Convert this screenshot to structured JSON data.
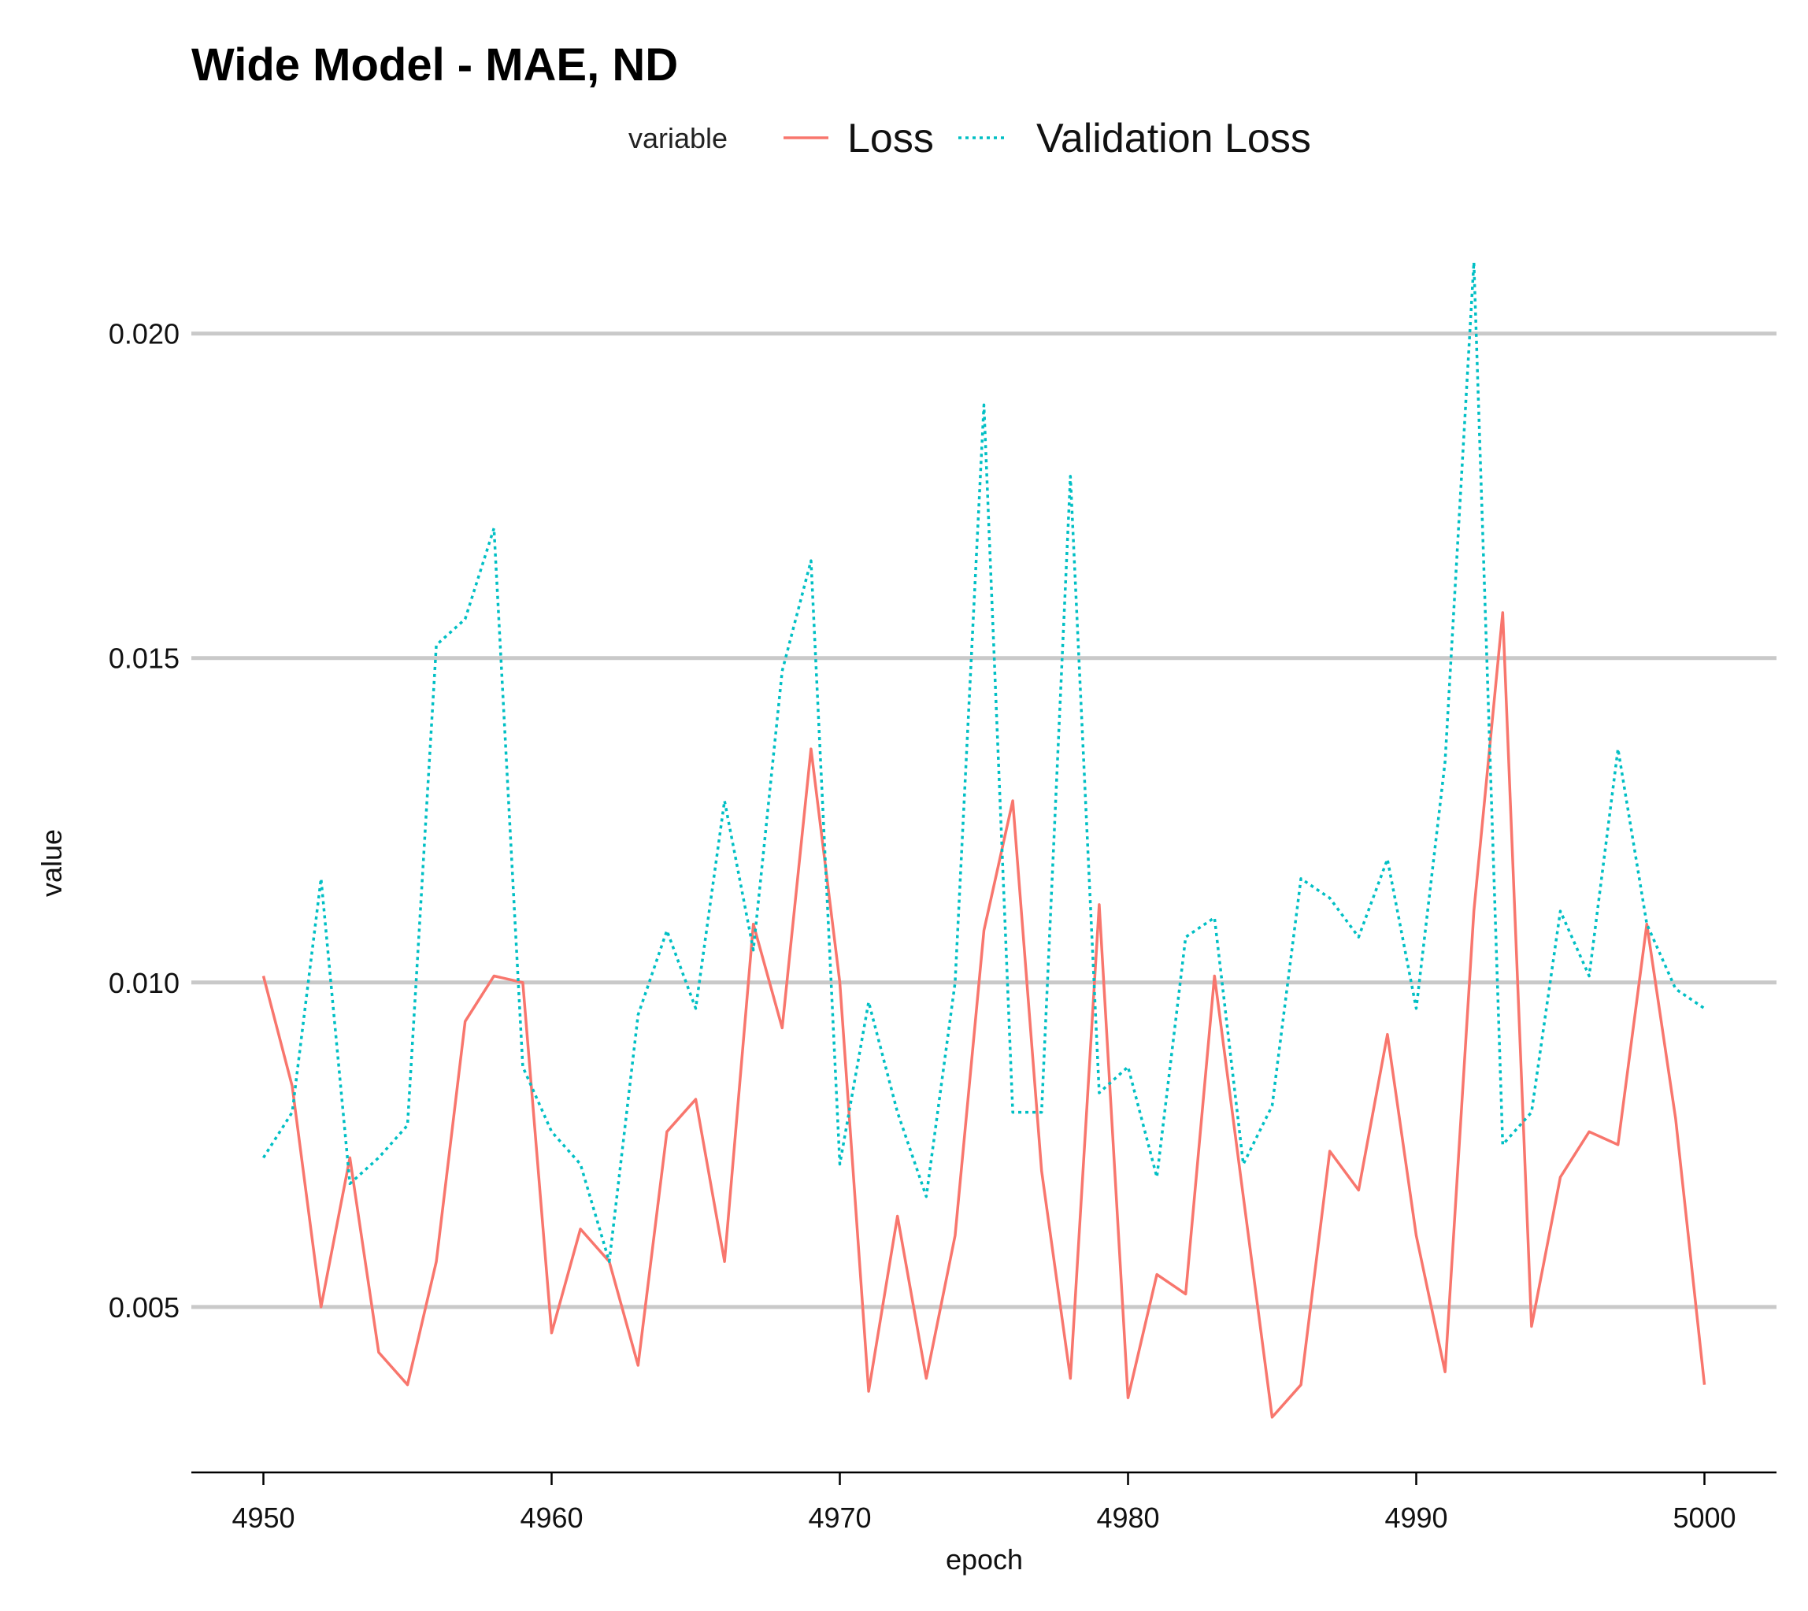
{
  "chart_data": {
    "type": "line",
    "title": "Wide Model - MAE, ND",
    "xlabel": "epoch",
    "ylabel": "value",
    "legend_title": "variable",
    "legend_position": "top",
    "grid": "horizontal-major",
    "xlim": [
      4947.5,
      5002.5
    ],
    "ylim": [
      0.00245,
      0.0215
    ],
    "x_ticks": [
      4950,
      4960,
      4970,
      4980,
      4990,
      5000
    ],
    "x_tick_labels": [
      "4950",
      "4960",
      "4970",
      "4980",
      "4990",
      "5000"
    ],
    "y_ticks": [
      0.005,
      0.01,
      0.015,
      0.02
    ],
    "y_tick_labels": [
      "0.005",
      "0.010",
      "0.015",
      "0.020"
    ],
    "x": [
      4950,
      4951,
      4952,
      4953,
      4954,
      4955,
      4956,
      4957,
      4958,
      4959,
      4960,
      4961,
      4962,
      4963,
      4964,
      4965,
      4966,
      4967,
      4968,
      4969,
      4970,
      4971,
      4972,
      4973,
      4974,
      4975,
      4976,
      4977,
      4978,
      4979,
      4980,
      4981,
      4982,
      4983,
      4984,
      4985,
      4986,
      4987,
      4988,
      4989,
      4990,
      4991,
      4992,
      4993,
      4994,
      4995,
      4996,
      4997,
      4998,
      4999,
      5000
    ],
    "series": [
      {
        "name": "Loss",
        "color": "#F8766D",
        "linetype": "solid",
        "values": [
          0.0101,
          0.0084,
          0.005,
          0.0073,
          0.0043,
          0.0038,
          0.0057,
          0.0094,
          0.0101,
          0.01,
          0.0046,
          0.0062,
          0.0057,
          0.0041,
          0.0077,
          0.0082,
          0.0057,
          0.0109,
          0.0093,
          0.0136,
          0.01,
          0.0037,
          0.0064,
          0.0039,
          0.0061,
          0.0108,
          0.0128,
          0.0071,
          0.0039,
          0.0112,
          0.0036,
          0.0055,
          0.0052,
          0.0101,
          0.0067,
          0.0033,
          0.0038,
          0.0074,
          0.0068,
          0.0092,
          0.0061,
          0.004,
          0.0111,
          0.0157,
          0.0047,
          0.007,
          0.0077,
          0.0075,
          0.0109,
          0.0079,
          0.0038
        ]
      },
      {
        "name": "Validation Loss",
        "color": "#00BFC4",
        "linetype": "dotted",
        "values": [
          0.0073,
          0.008,
          0.0116,
          0.0069,
          0.0073,
          0.0078,
          0.0152,
          0.0156,
          0.017,
          0.0087,
          0.0077,
          0.0072,
          0.0057,
          0.0095,
          0.0108,
          0.0096,
          0.0128,
          0.0105,
          0.0148,
          0.0165,
          0.0072,
          0.0097,
          0.008,
          0.0067,
          0.01,
          0.0189,
          0.008,
          0.008,
          0.0178,
          0.0083,
          0.0087,
          0.007,
          0.0107,
          0.011,
          0.0072,
          0.0081,
          0.0116,
          0.0113,
          0.0107,
          0.0119,
          0.0096,
          0.0134,
          0.0211,
          0.0075,
          0.008,
          0.0111,
          0.0101,
          0.0136,
          0.0109,
          0.0099,
          0.0096
        ]
      }
    ]
  }
}
